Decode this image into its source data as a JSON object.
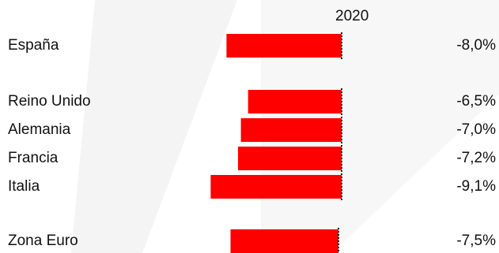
{
  "chart_data": {
    "type": "bar",
    "orientation": "horizontal",
    "period_label": "2020",
    "categories": [
      "España",
      "Reino Unido",
      "Alemania",
      "Francia",
      "Italia",
      "Zona Euro"
    ],
    "values": [
      -8.0,
      -6.5,
      -7.0,
      -7.2,
      -9.1,
      -7.5
    ],
    "value_labels": [
      "-8,0%",
      "-6,5%",
      "-7,0%",
      "-7,2%",
      "-9,1%",
      "-7,5%"
    ],
    "bar_color": "#ff0000",
    "grid": false,
    "legend": "none"
  }
}
